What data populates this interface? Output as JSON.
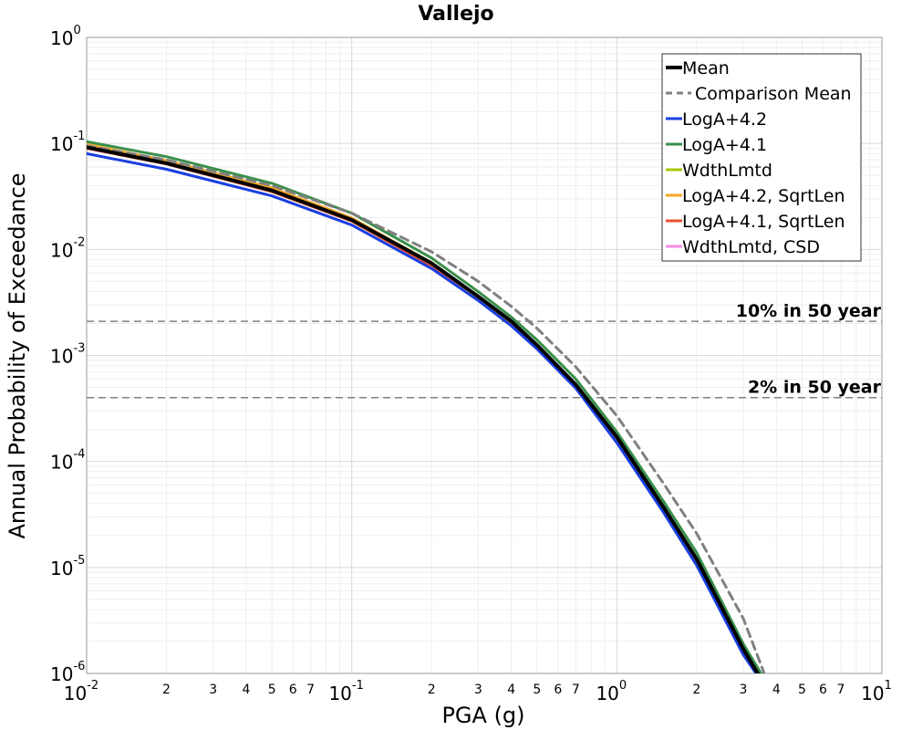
{
  "chart_data": {
    "type": "line",
    "title": "Vallejo",
    "xlabel": "PGA (g)",
    "ylabel": "Annual Probability of Exceedance",
    "x_scale": "log",
    "y_scale": "log",
    "xlim": [
      0.01,
      10
    ],
    "ylim": [
      1e-06,
      1
    ],
    "grid": true,
    "legend_position": "top-right",
    "x_ticks": [
      {
        "base": "10",
        "exp": "-2"
      },
      {
        "base": "10",
        "exp": "-1"
      },
      {
        "base": "10",
        "exp": "0"
      },
      {
        "base": "10",
        "exp": "1"
      }
    ],
    "y_ticks": [
      {
        "base": "10",
        "exp": "0"
      },
      {
        "base": "10",
        "exp": "-1"
      },
      {
        "base": "10",
        "exp": "-2"
      },
      {
        "base": "10",
        "exp": "-3"
      },
      {
        "base": "10",
        "exp": "-4"
      },
      {
        "base": "10",
        "exp": "-5"
      },
      {
        "base": "10",
        "exp": "-6"
      }
    ],
    "x_minor_tick_labels": [
      "2",
      "3",
      "4",
      "5",
      "6",
      "7"
    ],
    "reference_lines": [
      {
        "label": "10% in 50 year",
        "y": 0.0021,
        "color": "#808080"
      },
      {
        "label": "2% in 50 year",
        "y": 0.0004,
        "color": "#808080"
      }
    ],
    "series": [
      {
        "name": "Mean",
        "color": "#000000",
        "width": 4,
        "dash": "",
        "x": [
          0.01,
          0.02,
          0.05,
          0.1,
          0.2,
          0.3,
          0.4,
          0.5,
          0.7,
          1.0,
          1.5,
          2.0,
          3.0,
          3.4
        ],
        "y": [
          0.092,
          0.065,
          0.036,
          0.019,
          0.0074,
          0.0036,
          0.0021,
          0.00125,
          0.00053,
          0.00017,
          3.7e-05,
          1.2e-05,
          1.7e-06,
          1e-06
        ]
      },
      {
        "name": "Comparison Mean",
        "color": "#808080",
        "width": 3,
        "dash": "9,6",
        "x": [
          0.01,
          0.02,
          0.05,
          0.1,
          0.2,
          0.3,
          0.4,
          0.5,
          0.7,
          1.0,
          1.5,
          2.0,
          3.0,
          3.6
        ],
        "y": [
          0.095,
          0.07,
          0.04,
          0.022,
          0.0095,
          0.005,
          0.0029,
          0.0018,
          0.00078,
          0.00027,
          6.2e-05,
          2.1e-05,
          3.3e-06,
          1e-06
        ]
      },
      {
        "name": "LogA+4.2",
        "color": "#1a3fe0",
        "width": 3,
        "dash": "",
        "x": [
          0.01,
          0.02,
          0.05,
          0.1,
          0.2,
          0.3,
          0.4,
          0.5,
          0.7,
          1.0,
          1.5,
          2.0,
          3.0,
          3.35
        ],
        "y": [
          0.08,
          0.057,
          0.032,
          0.017,
          0.0066,
          0.0033,
          0.0019,
          0.00115,
          0.00049,
          0.00015,
          3.3e-05,
          1.05e-05,
          1.5e-06,
          1e-06
        ]
      },
      {
        "name": "LogA+4.1",
        "color": "#3a8f4a",
        "width": 3,
        "dash": "",
        "x": [
          0.01,
          0.02,
          0.05,
          0.1,
          0.2,
          0.3,
          0.4,
          0.5,
          0.7,
          1.0,
          1.5,
          2.0,
          3.0,
          3.5
        ],
        "y": [
          0.104,
          0.075,
          0.042,
          0.022,
          0.0083,
          0.004,
          0.0023,
          0.0014,
          0.0006,
          0.00019,
          4.2e-05,
          1.38e-05,
          1.9e-06,
          1e-06
        ]
      },
      {
        "name": "WdthLmtd",
        "color": "#a6c90a",
        "width": 3,
        "dash": "",
        "x": [
          0.01,
          0.02,
          0.05,
          0.1,
          0.2,
          0.3,
          0.4,
          0.5,
          0.7,
          1.0,
          1.5,
          2.0,
          3.0,
          3.4
        ],
        "y": [
          0.095,
          0.067,
          0.037,
          0.0195,
          0.0075,
          0.0036,
          0.0021,
          0.00126,
          0.00053,
          0.00017,
          3.7e-05,
          1.2e-05,
          1.7e-06,
          1e-06
        ]
      },
      {
        "name": "LogA+4.2, SqrtLen",
        "color": "#f5a623",
        "width": 3,
        "dash": "",
        "x": [
          0.01,
          0.02,
          0.05,
          0.1,
          0.2,
          0.3,
          0.4,
          0.5,
          0.7,
          1.0,
          1.5,
          2.0,
          3.0,
          3.4
        ],
        "y": [
          0.098,
          0.069,
          0.038,
          0.0198,
          0.0074,
          0.0035,
          0.002,
          0.0012,
          0.00051,
          0.000165,
          3.6e-05,
          1.15e-05,
          1.6e-06,
          1e-06
        ]
      },
      {
        "name": "LogA+4.1, SqrtLen",
        "color": "#e8502c",
        "width": 3,
        "dash": "",
        "x": [
          0.01,
          0.02,
          0.05,
          0.1,
          0.2,
          0.3,
          0.4,
          0.5,
          0.7,
          1.0,
          1.5,
          2.0,
          3.0,
          3.4
        ],
        "y": [
          0.09,
          0.064,
          0.035,
          0.0185,
          0.007,
          0.0034,
          0.00195,
          0.00118,
          0.0005,
          0.00016,
          3.5e-05,
          1.1e-05,
          1.6e-06,
          1e-06
        ]
      },
      {
        "name": "WdthLmtd, CSD",
        "color": "#f58de0",
        "width": 3,
        "dash": "",
        "x": [
          0.01,
          0.02,
          0.05,
          0.1,
          0.2,
          0.3,
          0.4,
          0.5,
          0.7,
          1.0,
          1.5,
          2.0,
          3.0,
          3.4
        ],
        "y": [
          0.092,
          0.065,
          0.036,
          0.019,
          0.0073,
          0.0035,
          0.002,
          0.0012,
          0.00051,
          0.000165,
          3.6e-05,
          1.15e-05,
          1.6e-06,
          1e-06
        ]
      }
    ]
  }
}
